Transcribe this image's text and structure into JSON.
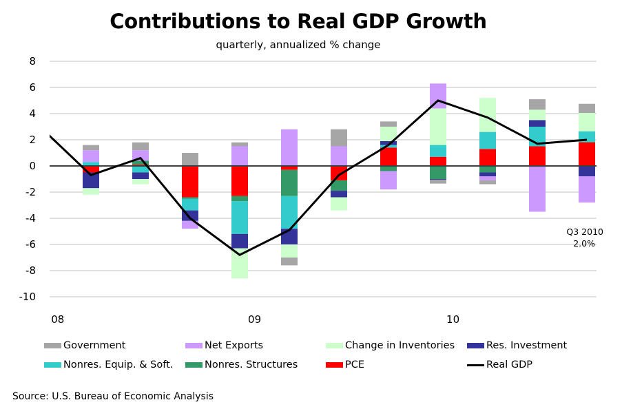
{
  "chart_data": {
    "type": "bar",
    "stacked": true,
    "title": "Contributions to Real GDP Growth",
    "subtitle": "quarterly, annualized % change",
    "xlabel": "",
    "ylabel": "",
    "ylim": [
      -10,
      8
    ],
    "yticks": [
      8,
      6,
      4,
      2,
      0,
      -2,
      -4,
      -6,
      -8,
      -10
    ],
    "ytick_labels": [
      "8",
      "6",
      "4",
      "2",
      "0",
      "-2",
      "-4",
      "-6",
      "-8",
      "-10"
    ],
    "grid": true,
    "categories": [
      "2008 Q1",
      "2008 Q2",
      "2008 Q3",
      "2008 Q4",
      "2009 Q1",
      "2009 Q2",
      "2009 Q3",
      "2009 Q4",
      "2010 Q1",
      "2010 Q2",
      "2010 Q3"
    ],
    "year_labels": [
      {
        "label": "08",
        "quarter_index": -0.67
      },
      {
        "label": "09",
        "quarter_index": 3.3
      },
      {
        "label": "10",
        "quarter_index": 7.3
      }
    ],
    "series": [
      {
        "name": "PCE",
        "color": "#ff0000",
        "values": [
          -0.5,
          0.1,
          -2.4,
          -2.3,
          -0.3,
          -1.1,
          1.4,
          0.7,
          1.3,
          1.5,
          1.8
        ]
      },
      {
        "name": "Nonres. Structures",
        "color": "#339966",
        "values": [
          0.0,
          0.3,
          -0.1,
          -0.4,
          -2.0,
          -0.8,
          -0.4,
          -1.0,
          -0.5,
          0.0,
          0.05
        ]
      },
      {
        "name": "Nonres. Equip. & Soft.",
        "color": "#33cccc",
        "values": [
          0.3,
          -0.5,
          -0.9,
          -2.5,
          -2.5,
          0.0,
          0.2,
          0.9,
          1.3,
          1.5,
          0.8
        ]
      },
      {
        "name": "Res. Investment",
        "color": "#333399",
        "values": [
          -1.2,
          -0.5,
          -0.8,
          -1.1,
          -1.2,
          -0.5,
          0.3,
          -0.05,
          -0.3,
          0.5,
          -0.8
        ]
      },
      {
        "name": "Change in Inventories",
        "color": "#ccffcc",
        "values": [
          -0.5,
          -0.4,
          0.0,
          -2.3,
          -1.0,
          -1.0,
          1.1,
          2.8,
          2.6,
          0.8,
          1.4
        ]
      },
      {
        "name": "Net Exports",
        "color": "#cc99ff",
        "values": [
          0.9,
          0.8,
          -0.6,
          1.5,
          2.8,
          1.5,
          -1.4,
          1.9,
          -0.3,
          -3.5,
          -2.0
        ]
      },
      {
        "name": "Government",
        "color": "#a6a6a6",
        "values": [
          0.4,
          0.6,
          1.0,
          0.3,
          -0.6,
          1.3,
          0.4,
          -0.3,
          -0.3,
          0.8,
          0.7
        ]
      }
    ],
    "line": {
      "name": "Real GDP",
      "color": "#000000",
      "prior_value": 2.9,
      "values": [
        -0.7,
        0.6,
        -4.0,
        -6.8,
        -4.9,
        -0.7,
        1.6,
        5.0,
        3.7,
        1.7,
        2.0
      ]
    },
    "annotation": {
      "line1": "Q3 2010",
      "line2": "2.0%"
    },
    "legend_position": "bottom",
    "legend": [
      {
        "label": "Government",
        "type": "box",
        "color": "#a6a6a6"
      },
      {
        "label": "Net Exports",
        "type": "box",
        "color": "#cc99ff"
      },
      {
        "label": "Change in Inventories",
        "type": "box",
        "color": "#ccffcc"
      },
      {
        "label": "Res. Investment",
        "type": "box",
        "color": "#333399"
      },
      {
        "label": "Nonres. Equip. & Soft.",
        "type": "box",
        "color": "#33cccc"
      },
      {
        "label": "Nonres. Structures",
        "type": "box",
        "color": "#339966"
      },
      {
        "label": "PCE",
        "type": "box",
        "color": "#ff0000"
      },
      {
        "label": "Real GDP",
        "type": "line",
        "color": "#000000"
      }
    ],
    "source": "Source: U.S. Bureau of Economic Analysis"
  }
}
